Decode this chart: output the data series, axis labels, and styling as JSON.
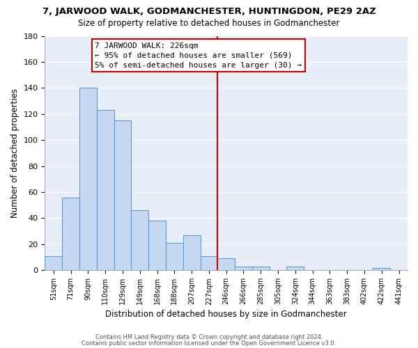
{
  "title": "7, JARWOOD WALK, GODMANCHESTER, HUNTINGDON, PE29 2AZ",
  "subtitle": "Size of property relative to detached houses in Godmanchester",
  "xlabel": "Distribution of detached houses by size in Godmanchester",
  "ylabel": "Number of detached properties",
  "bin_labels": [
    "51sqm",
    "71sqm",
    "90sqm",
    "110sqm",
    "129sqm",
    "149sqm",
    "168sqm",
    "188sqm",
    "207sqm",
    "227sqm",
    "246sqm",
    "266sqm",
    "285sqm",
    "305sqm",
    "324sqm",
    "344sqm",
    "363sqm",
    "383sqm",
    "402sqm",
    "422sqm",
    "441sqm"
  ],
  "bar_heights": [
    11,
    56,
    140,
    123,
    115,
    46,
    38,
    21,
    27,
    11,
    9,
    3,
    3,
    0,
    3,
    0,
    0,
    0,
    0,
    2,
    0
  ],
  "bar_color": "#c6d9f0",
  "bar_edge_color": "#5b9bd5",
  "vline_color": "#cc0000",
  "annotation_title": "7 JARWOOD WALK: 226sqm",
  "annotation_line1": "← 95% of detached houses are smaller (569)",
  "annotation_line2": "5% of semi-detached houses are larger (30) →",
  "annotation_box_edge": "#cc0000",
  "ylim": [
    0,
    180
  ],
  "yticks": [
    0,
    20,
    40,
    60,
    80,
    100,
    120,
    140,
    160,
    180
  ],
  "footer1": "Contains HM Land Registry data © Crown copyright and database right 2024.",
  "footer2": "Contains public sector information licensed under the Open Government Licence v3.0.",
  "bg_color": "#ffffff",
  "plot_bg_color": "#e8eef8",
  "grid_color": "#ffffff"
}
